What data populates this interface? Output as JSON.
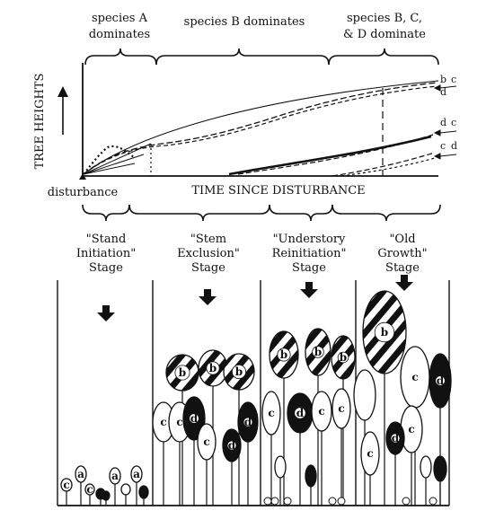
{
  "header_spans": [
    {
      "line1": "species A",
      "line2": "dominates"
    },
    {
      "line1": "species B  dominates",
      "line2": ""
    },
    {
      "line1": "species  B, C,",
      "line2": "& D dominate"
    }
  ],
  "axes": {
    "y_label": "TREE  HEIGHTS",
    "x_label": "TIME  SINCE  DISTURBANCE",
    "origin_label": "disturbance"
  },
  "curve_end_labels": {
    "top_b": "b",
    "top_c": "c",
    "top_d": "d",
    "mid_d": "d",
    "mid_c": "c",
    "low_c": "c",
    "low_d": "d"
  },
  "stages": [
    {
      "line1": "\"Stand",
      "line2": "Initiation\"",
      "line3": "Stage"
    },
    {
      "line1": "\"Stem",
      "line2": "Exclusion\"",
      "line3": "Stage"
    },
    {
      "line1": "\"Understory",
      "line2": "Reinitiation\"",
      "line3": "Stage"
    },
    {
      "line1": "\"Old",
      "line2": "Growth\"",
      "line3": "Stage"
    }
  ],
  "tree_labels": {
    "a": "a",
    "b": "b",
    "c": "c",
    "d": "d"
  }
}
